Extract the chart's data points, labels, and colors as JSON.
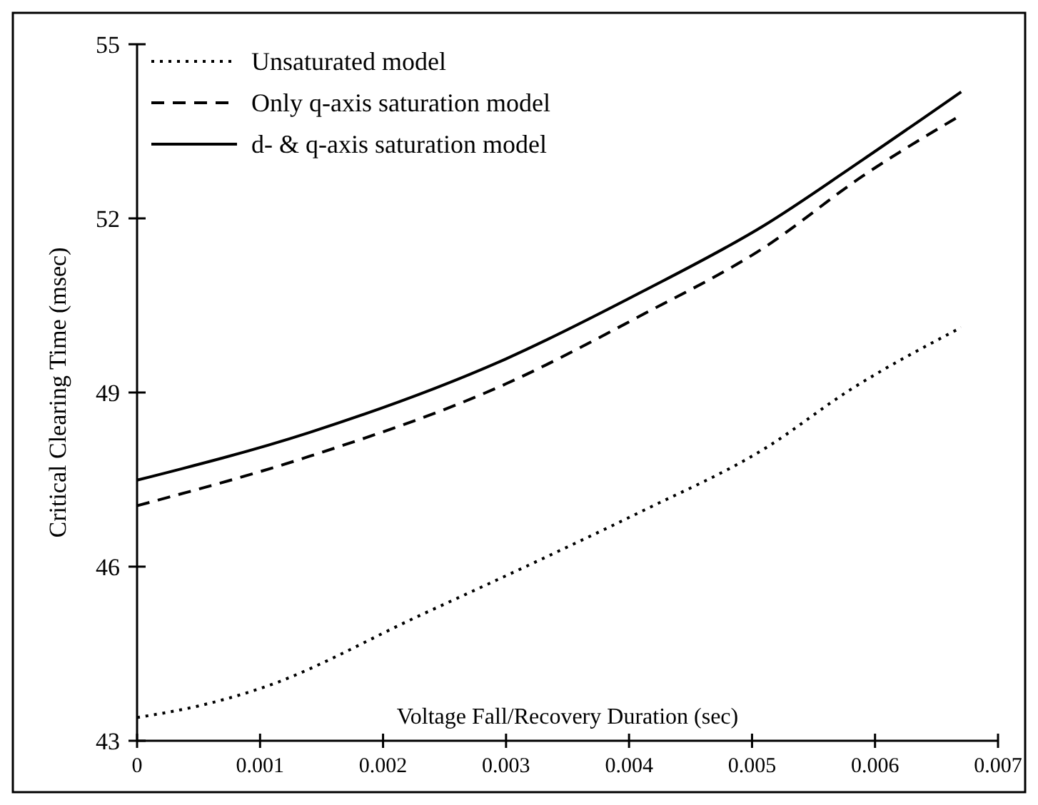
{
  "chart_data": {
    "type": "line",
    "xlabel": "Voltage Fall/Recovery Duration (sec)",
    "ylabel": "Critical Clearing Time (msec)",
    "xlim": [
      0,
      0.007
    ],
    "xticks": [
      0,
      0.001,
      0.002,
      0.003,
      0.004,
      0.005,
      0.006,
      0.007
    ],
    "ylim": [
      43,
      55
    ],
    "yticks": [
      43,
      46,
      49,
      52,
      55
    ],
    "grid": false,
    "legend": "top left",
    "marker": "none",
    "series": [
      {
        "name": "Unsaturated model",
        "color": "#000000",
        "line_style": "dotted",
        "x": [
          0,
          0.0005,
          0.001,
          0.0023,
          0.0034,
          0.0041,
          0.0051,
          0.0058,
          0.0067
        ],
        "values": [
          43.4,
          43.6,
          43.9,
          45.16,
          46.24,
          46.95,
          48.03,
          49.05,
          50.12
        ]
      },
      {
        "name": "Only q-axis saturation model",
        "color": "#000000",
        "line_style": "dashed",
        "x": [
          0,
          0.0014,
          0.003,
          0.0041,
          0.0051,
          0.0059,
          0.0067
        ],
        "values": [
          47.05,
          47.9,
          49.15,
          50.33,
          51.5,
          52.73,
          53.78
        ]
      },
      {
        "name": "d- & q-axis saturation model",
        "color": "#000000",
        "line_style": "solid",
        "x": [
          0,
          0.0014,
          0.003,
          0.0041,
          0.0051,
          0.0059,
          0.0067
        ],
        "values": [
          47.49,
          48.31,
          49.58,
          50.73,
          51.88,
          53.01,
          54.18
        ]
      }
    ]
  }
}
